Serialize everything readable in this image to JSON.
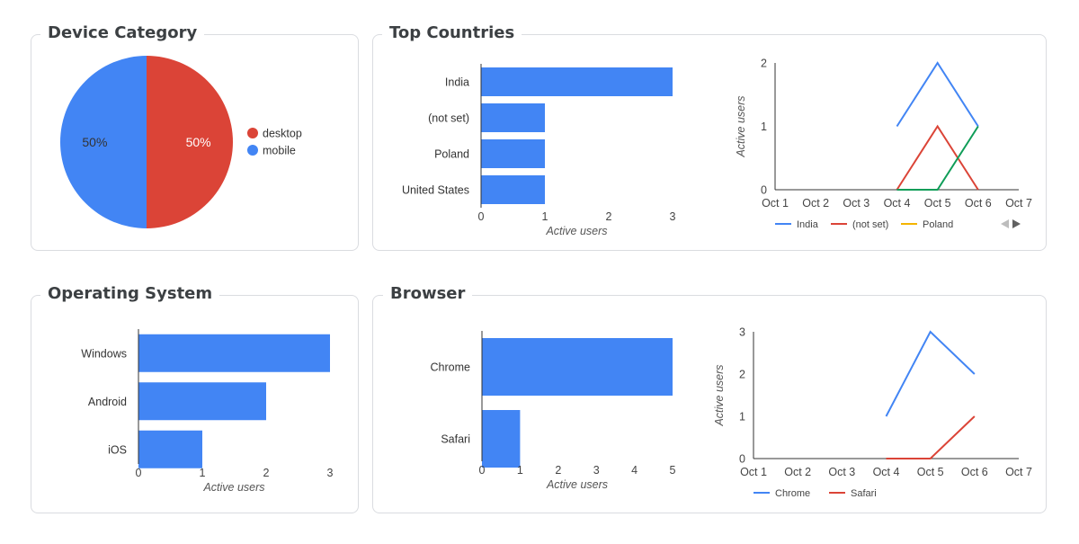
{
  "cards": {
    "device": {
      "title": "Device Category"
    },
    "countries": {
      "title": "Top Countries"
    },
    "os": {
      "title": "Operating System"
    },
    "browser": {
      "title": "Browser"
    }
  },
  "chart_data": [
    {
      "id": "device-pie",
      "type": "pie",
      "categories": [
        "desktop",
        "mobile"
      ],
      "values": [
        50,
        50
      ],
      "labels": [
        "50%",
        "50%"
      ],
      "colors": [
        "#db4437",
        "#4285f4"
      ],
      "legend": "right"
    },
    {
      "id": "countries-bar",
      "type": "bar",
      "orientation": "horizontal",
      "categories": [
        "India",
        "(not set)",
        "Poland",
        "United States"
      ],
      "values": [
        3,
        1,
        1,
        1
      ],
      "xlabel": "Active users",
      "xticks": [
        "0",
        "1",
        "2",
        "3"
      ],
      "xlim": [
        0,
        3
      ],
      "color": "#4285f4"
    },
    {
      "id": "countries-line",
      "type": "line",
      "x": [
        "Oct 1",
        "Oct 2",
        "Oct 3",
        "Oct 4",
        "Oct 5",
        "Oct 6",
        "Oct 7"
      ],
      "ylabel": "Active users",
      "yticks": [
        "0",
        "1",
        "2"
      ],
      "ylim": [
        0,
        2
      ],
      "series": [
        {
          "name": "India",
          "color": "#4285f4",
          "values": [
            null,
            null,
            null,
            1,
            2,
            1,
            null
          ]
        },
        {
          "name": "(not set)",
          "color": "#db4437",
          "values": [
            null,
            null,
            null,
            0,
            1,
            0,
            null
          ]
        },
        {
          "name": "Poland",
          "color": "#f4b400",
          "values": [
            null,
            null,
            null,
            null,
            null,
            null,
            null
          ]
        },
        {
          "name": "",
          "color": "#0f9d58",
          "values": [
            null,
            null,
            null,
            0,
            0,
            1,
            null
          ]
        }
      ],
      "legend": "bottom"
    },
    {
      "id": "os-bar",
      "type": "bar",
      "orientation": "horizontal",
      "categories": [
        "Windows",
        "Android",
        "iOS"
      ],
      "values": [
        3,
        2,
        1
      ],
      "xlabel": "Active users",
      "xticks": [
        "0",
        "1",
        "2",
        "3"
      ],
      "xlim": [
        0,
        3
      ],
      "color": "#4285f4"
    },
    {
      "id": "browser-bar",
      "type": "bar",
      "orientation": "horizontal",
      "categories": [
        "Chrome",
        "Safari"
      ],
      "values": [
        5,
        1
      ],
      "xlabel": "Active users",
      "xticks": [
        "0",
        "1",
        "2",
        "3",
        "4",
        "5"
      ],
      "xlim": [
        0,
        5
      ],
      "color": "#4285f4"
    },
    {
      "id": "browser-line",
      "type": "line",
      "x": [
        "Oct 1",
        "Oct 2",
        "Oct 3",
        "Oct 4",
        "Oct 5",
        "Oct 6",
        "Oct 7"
      ],
      "ylabel": "Active users",
      "yticks": [
        "0",
        "1",
        "2",
        "3"
      ],
      "ylim": [
        0,
        3
      ],
      "series": [
        {
          "name": "Chrome",
          "color": "#4285f4",
          "values": [
            null,
            null,
            null,
            1,
            3,
            2,
            null
          ]
        },
        {
          "name": "Safari",
          "color": "#db4437",
          "values": [
            null,
            null,
            null,
            0,
            0,
            1,
            null
          ]
        }
      ],
      "legend": "bottom"
    }
  ],
  "legend_pager": {
    "prev_icon": "triangle-left-icon",
    "next_icon": "triangle-right-icon",
    "prev_color": "#bdbdbd",
    "next_color": "#616161"
  }
}
